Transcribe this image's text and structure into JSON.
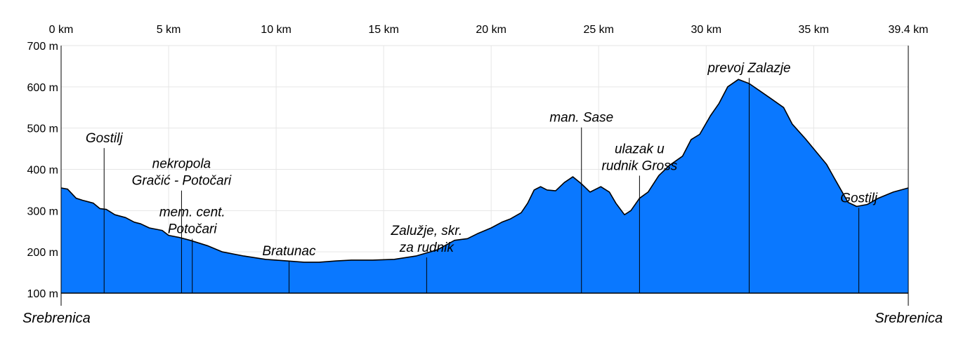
{
  "chart_data": {
    "type": "area",
    "xlim": [
      0,
      39.4
    ],
    "ylim": [
      100,
      700
    ],
    "grid": true,
    "fill_color": "#0a78ff",
    "line_color": "#000000",
    "x_ticks": [
      {
        "v": 0,
        "label": "0 km"
      },
      {
        "v": 5,
        "label": "5 km"
      },
      {
        "v": 10,
        "label": "10 km"
      },
      {
        "v": 15,
        "label": "15 km"
      },
      {
        "v": 20,
        "label": "20 km"
      },
      {
        "v": 25,
        "label": "25 km"
      },
      {
        "v": 30,
        "label": "30 km"
      },
      {
        "v": 35,
        "label": "35 km"
      },
      {
        "v": 39.4,
        "label": "39.4 km"
      }
    ],
    "y_ticks": [
      {
        "v": 700,
        "label": "700 m"
      },
      {
        "v": 600,
        "label": "600 m"
      },
      {
        "v": 500,
        "label": "500 m"
      },
      {
        "v": 400,
        "label": "400 m"
      },
      {
        "v": 300,
        "label": "300 m"
      },
      {
        "v": 200,
        "label": "200 m"
      },
      {
        "v": 100,
        "label": "100 m"
      }
    ],
    "x": [
      0,
      0.3,
      0.7,
      1.0,
      1.5,
      1.8,
      2.1,
      2.5,
      3.0,
      3.4,
      3.7,
      4.1,
      4.7,
      5.0,
      5.5,
      6.0,
      6.8,
      7.5,
      8.5,
      9.5,
      10.5,
      11.3,
      12.0,
      12.8,
      13.5,
      14.5,
      15.5,
      16.5,
      17.5,
      18.3,
      18.9,
      19.4,
      20.0,
      20.5,
      20.9,
      21.4,
      21.7,
      22.0,
      22.3,
      22.6,
      23.0,
      23.4,
      23.8,
      24.2,
      24.6,
      25.1,
      25.5,
      25.8,
      26.2,
      26.5,
      26.9,
      27.3,
      27.8,
      28.3,
      28.9,
      29.3,
      29.7,
      30.2,
      30.6,
      31.0,
      31.5,
      32.0,
      32.5,
      33.0,
      33.6,
      34.0,
      34.6,
      35.0,
      35.6,
      36.0,
      36.6,
      37.0,
      37.5,
      38.0,
      38.7,
      39.4
    ],
    "y": [
      355,
      352,
      330,
      325,
      318,
      305,
      303,
      290,
      283,
      272,
      268,
      258,
      252,
      240,
      235,
      228,
      215,
      200,
      190,
      182,
      178,
      175,
      175,
      178,
      180,
      180,
      182,
      190,
      205,
      228,
      232,
      245,
      258,
      272,
      280,
      295,
      318,
      350,
      358,
      350,
      348,
      368,
      382,
      365,
      345,
      358,
      345,
      318,
      290,
      300,
      330,
      345,
      385,
      410,
      432,
      472,
      485,
      530,
      560,
      600,
      618,
      608,
      590,
      572,
      550,
      510,
      475,
      450,
      412,
      375,
      320,
      310,
      315,
      330,
      345,
      355
    ],
    "annotations": [
      {
        "x": 2.0,
        "lines": [
          "Gostilj"
        ],
        "y": 455
      },
      {
        "x": 5.6,
        "lines": [
          "nekropola",
          "Gračić - Potočari"
        ],
        "y": 352
      },
      {
        "x": 6.1,
        "lines": [
          "mem. cent.",
          "Potočari"
        ],
        "y": 235
      },
      {
        "x": 10.6,
        "lines": [
          "Bratunac"
        ],
        "y": 182
      },
      {
        "x": 17.0,
        "lines": [
          "Zalužje, skr.",
          "za rudnik"
        ],
        "y": 190
      },
      {
        "x": 24.2,
        "lines": [
          "man. Sase"
        ],
        "y": 505
      },
      {
        "x": 26.9,
        "lines": [
          "ulazak u",
          "rudnik Gross"
        ],
        "y": 388
      },
      {
        "x": 32.0,
        "lines": [
          "prevoj Zalazje"
        ],
        "y": 625
      },
      {
        "x": 37.1,
        "lines": [
          "Gostilj"
        ],
        "y": 310
      }
    ],
    "start_label": "Srebrenica",
    "end_label": "Srebrenica"
  }
}
